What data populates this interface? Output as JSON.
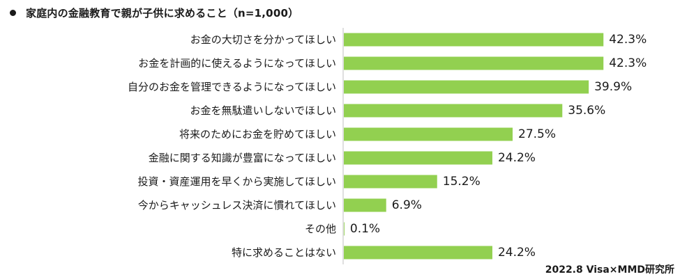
{
  "title": "家庭内の金融教育で親が子供に求めること（n=1,000）",
  "source": "2022.8 Visa×MMD研究所",
  "colors": {
    "bar": "#92d050",
    "axis": "#bfbfbf",
    "text": "#1a1a1a"
  },
  "chart_data": {
    "type": "bar",
    "orientation": "horizontal",
    "title": "家庭内の金融教育で親が子供に求めること（n=1,000）",
    "categories": [
      "お金の大切さを分かってほしい",
      "お金を計画的に使えるようになってほしい",
      "自分のお金を管理できるようになってほしい",
      "お金を無駄遣いしないでほしい",
      "将来のためにお金を貯めてほしい",
      "金融に関する知識が豊富になってほしい",
      "投資・資産運用を早くから実施してほしい",
      "今からキャッシュレス決済に慣れてほしい",
      "その他",
      "特に求めることはない"
    ],
    "values": [
      42.3,
      42.3,
      39.9,
      35.6,
      27.5,
      24.2,
      15.2,
      6.9,
      0.1,
      24.2
    ],
    "value_labels": [
      "42.3%",
      "42.3%",
      "39.9%",
      "35.6%",
      "27.5%",
      "24.2%",
      "15.2%",
      "6.9%",
      "0.1%",
      "24.2%"
    ],
    "unit": "%",
    "xlim": [
      0,
      50
    ],
    "grid": false,
    "legend": "none"
  }
}
